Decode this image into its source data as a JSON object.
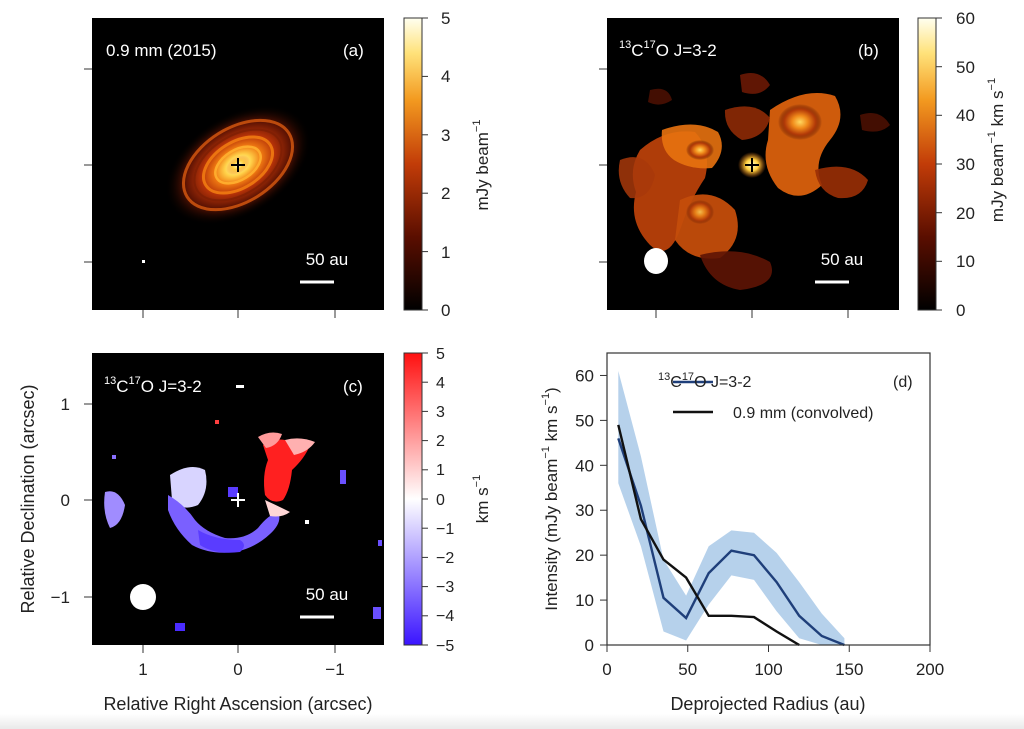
{
  "panel_a": {
    "title": "0.9 mm (2015)",
    "letter": "(a)",
    "scalebar": "50 au",
    "colorbar": {
      "label": "mJy beam",
      "exponent": "−1",
      "ticks": [
        "5",
        "4",
        "3",
        "2",
        "1",
        "0"
      ],
      "range": [
        0,
        5
      ]
    }
  },
  "panel_b": {
    "title_sup1": "13",
    "title_c": "C",
    "title_sup2": "17",
    "title_rest": "O J=3-2",
    "letter": "(b)",
    "scalebar": "50 au",
    "colorbar": {
      "label_a": "mJy beam",
      "exp1": "−1",
      "label_b": " km s",
      "exp2": "−1",
      "ticks": [
        "60",
        "50",
        "40",
        "30",
        "20",
        "10",
        "0"
      ],
      "range": [
        0,
        60
      ]
    }
  },
  "panel_c": {
    "title_sup1": "13",
    "title_c": "C",
    "title_sup2": "17",
    "title_rest": "O J=3-2",
    "letter": "(c)",
    "scalebar": "50 au",
    "colorbar": {
      "label": "km s",
      "exponent": "−1",
      "ticks": [
        "5",
        "4",
        "3",
        "2",
        "1",
        "0",
        "−1",
        "−2",
        "−3",
        "−4",
        "−5"
      ],
      "range": [
        -5,
        5
      ]
    },
    "y_ticks": [
      "1",
      "0",
      "−1"
    ],
    "x_ticks": [
      "1",
      "0",
      "−1"
    ],
    "ylabel": "Relative Declination (arcsec)",
    "xlabel": "Relative Right Ascension (arcsec)"
  },
  "chart_data": {
    "type": "line",
    "letter": "(d)",
    "xlabel": "Deprojected Radius (au)",
    "ylabel_main": "Intensity (mJy beam",
    "ylabel_exp1": "−1",
    "ylabel_mid": " km s",
    "ylabel_exp2": "−1",
    "ylabel_end": ")",
    "xlim": [
      0,
      200
    ],
    "ylim": [
      0,
      65
    ],
    "x_ticks": [
      "0",
      "50",
      "100",
      "150",
      "200"
    ],
    "y_ticks": [
      "0",
      "10",
      "20",
      "30",
      "40",
      "50",
      "60"
    ],
    "legend_position": "top-right",
    "series": [
      {
        "name_sup1": "13",
        "name_c": "C",
        "name_sup2": "17",
        "name_rest": "O J=3-2",
        "color": "#1f3f7a",
        "band_color": "#a9c9e8",
        "x": [
          7,
          21,
          35,
          49,
          63,
          77,
          91,
          105,
          119,
          133,
          147
        ],
        "y": [
          46,
          31,
          10.5,
          6,
          16,
          21,
          20,
          14,
          6.5,
          2,
          0
        ],
        "upper": [
          61,
          42,
          19,
          11,
          22,
          25.5,
          25,
          20.5,
          14,
          7,
          1.5
        ],
        "lower": [
          36,
          22,
          3,
          1,
          9,
          15.5,
          14.5,
          7.5,
          1.5,
          0,
          0
        ]
      },
      {
        "name": "0.9 mm (convolved)",
        "color": "#111111",
        "x": [
          7,
          21,
          35,
          49,
          63,
          77,
          91,
          105,
          119
        ],
        "y": [
          49,
          28,
          19,
          15,
          6.5,
          6.5,
          6.2,
          3,
          0
        ]
      }
    ]
  }
}
